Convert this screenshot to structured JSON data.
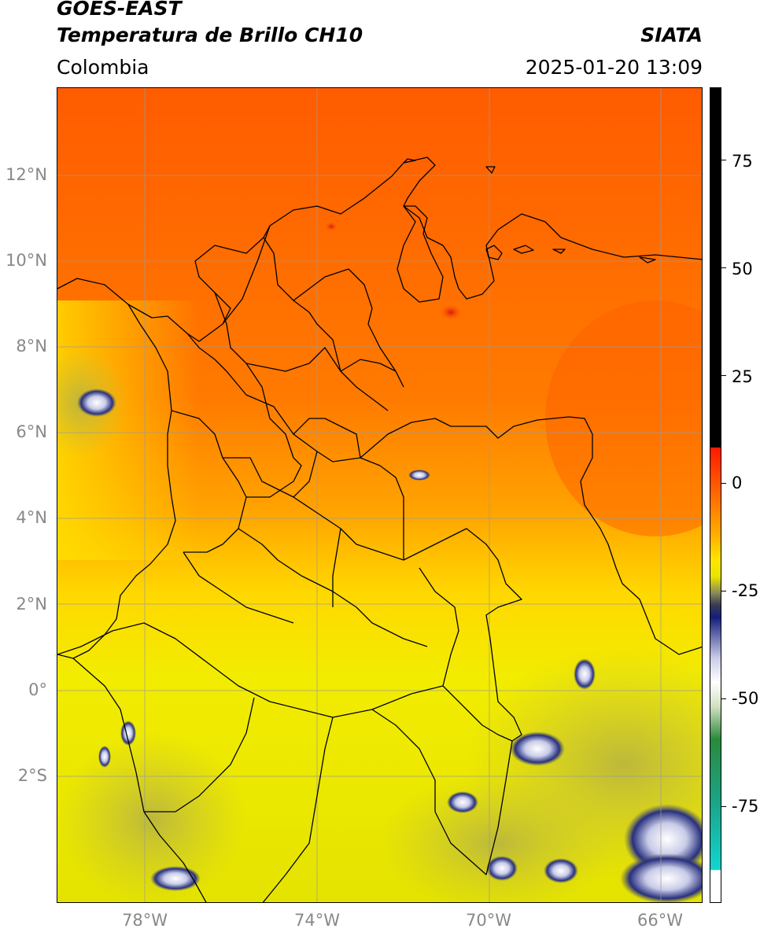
{
  "header": {
    "satellite": "GOES-EAST",
    "product": "Temperatura de Brillo CH10",
    "brand": "SIATA",
    "region": "Colombia",
    "datetime": "2025-01-20 13:09"
  },
  "map": {
    "lat_labels": [
      "12°N",
      "10°N",
      "8°N",
      "6°N",
      "4°N",
      "2°N",
      "0°",
      "2°S"
    ],
    "lon_labels": [
      "78°W",
      "74°W",
      "70°W",
      "66°W"
    ],
    "gridlines": true
  },
  "colorbar": {
    "tick_labels": [
      "75",
      "50",
      "25",
      "0",
      "-25",
      "-50",
      "-75"
    ],
    "colors": {
      "warm": "#ff5a00",
      "mid": "#ff9c00",
      "yellow": "#ffe600",
      "olive": "#c9c23a",
      "navy": "#141e7a",
      "white": "#ffffff",
      "green": "#2a8a3c",
      "cyan": "#12d6d0",
      "black": "#000000",
      "red": "#ff1a00"
    }
  }
}
